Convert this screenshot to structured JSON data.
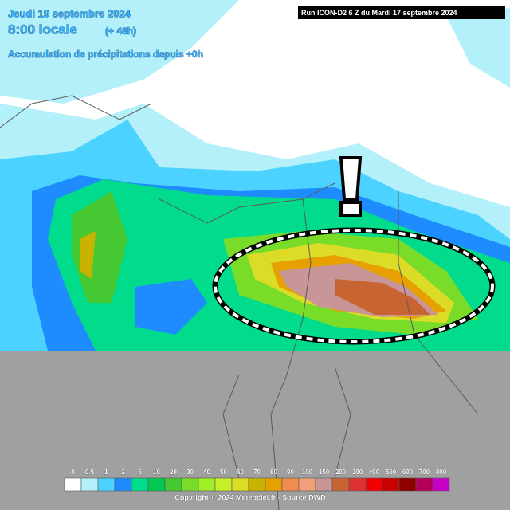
{
  "header": {
    "date": "Jeudi 19 septembre 2024",
    "time": "8:00 locale",
    "lead": "(+ 48h)",
    "subtitle": "Accumulation de précipitations depuis +0h",
    "run": "Run ICON-D2 6 Z du Mardi 17 septembre 2024"
  },
  "legend": {
    "items": [
      {
        "value": 0,
        "color": "#ffffff"
      },
      {
        "value": 0.5,
        "color": "#b4f0fa"
      },
      {
        "value": 1,
        "color": "#4bd2ff"
      },
      {
        "value": 2,
        "color": "#1e8cff"
      },
      {
        "value": 5,
        "color": "#00dc8c"
      },
      {
        "value": 10,
        "color": "#00c850"
      },
      {
        "value": 20,
        "color": "#46c832"
      },
      {
        "value": 30,
        "color": "#78dc28"
      },
      {
        "value": 40,
        "color": "#a0f028"
      },
      {
        "value": 50,
        "color": "#c8f028"
      },
      {
        "value": 60,
        "color": "#dcdc28"
      },
      {
        "value": 70,
        "color": "#c8b400"
      },
      {
        "value": 80,
        "color": "#e6a000"
      },
      {
        "value": 90,
        "color": "#f08c50"
      },
      {
        "value": 100,
        "color": "#f0a078"
      },
      {
        "value": 150,
        "color": "#c89696"
      },
      {
        "value": 200,
        "color": "#c86432"
      },
      {
        "value": 300,
        "color": "#dc3232"
      },
      {
        "value": 400,
        "color": "#f00000"
      },
      {
        "value": 500,
        "color": "#c80000"
      },
      {
        "value": 600,
        "color": "#8c0000"
      },
      {
        "value": 700,
        "color": "#b4005a"
      },
      {
        "value": 800,
        "color": "#c800c8"
      }
    ]
  },
  "footer": {
    "copyright": "Copyright © 2024 Meteociel.fr - Source DWD"
  }
}
